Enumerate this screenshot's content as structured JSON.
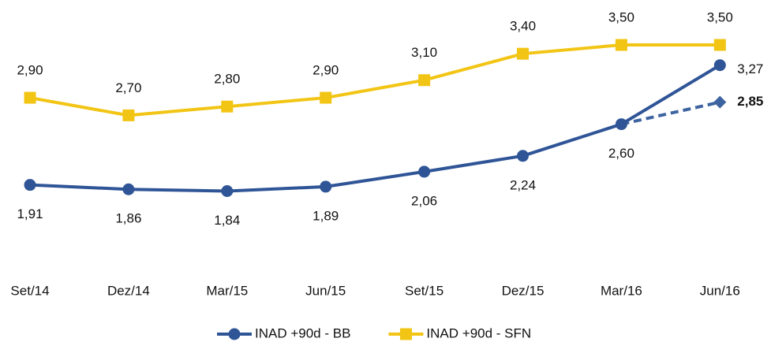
{
  "chart_data": {
    "type": "line",
    "categories": [
      "Set/14",
      "Dez/14",
      "Mar/15",
      "Jun/15",
      "Set/15",
      "Dez/15",
      "Mar/16",
      "Jun/16"
    ],
    "series": [
      {
        "name": "INAD +90d - BB",
        "color": "#2f5597",
        "marker": "circle",
        "values": [
          1.91,
          1.86,
          1.84,
          1.89,
          2.06,
          2.24,
          2.6,
          3.27
        ],
        "value_labels": [
          "1,91",
          "1,86",
          "1,84",
          "1,89",
          "2,06",
          "2,24",
          "2,60",
          "3,27"
        ]
      },
      {
        "name": "INAD +90d - SFN",
        "color": "#f2c515",
        "marker": "square",
        "values": [
          2.9,
          2.7,
          2.8,
          2.9,
          3.1,
          3.4,
          3.5,
          3.5
        ],
        "value_labels": [
          "2,90",
          "2,70",
          "2,80",
          "2,90",
          "3,10",
          "3,40",
          "3,50",
          "3,50"
        ]
      },
      {
        "color": "#3d64a0",
        "marker": "diamond",
        "dashed": true,
        "values": [
          null,
          null,
          null,
          null,
          null,
          null,
          2.6,
          2.85
        ],
        "value_labels": [
          null,
          null,
          null,
          null,
          null,
          null,
          null,
          "2,85"
        ]
      }
    ],
    "ylim": [
      1.2,
      3.8
    ],
    "legend": "bottom"
  }
}
